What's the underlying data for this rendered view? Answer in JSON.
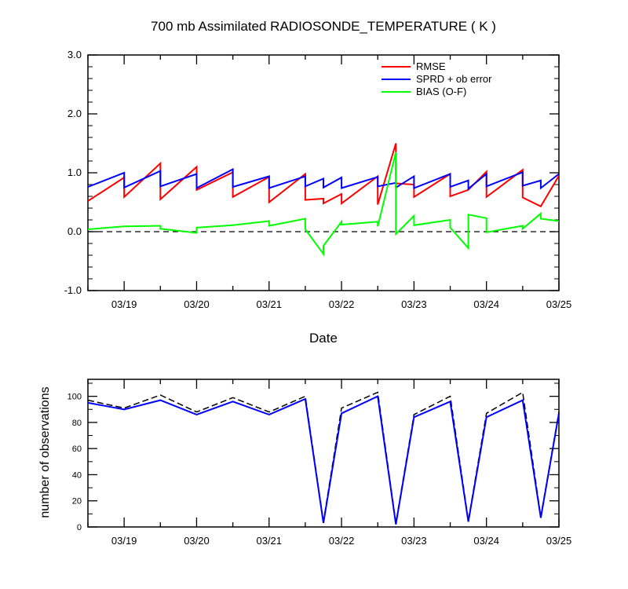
{
  "title": "700 mb Assimilated RADIOSONDE_TEMPERATURE ( K )",
  "chart_data": [
    {
      "type": "line",
      "title": "700 mb Assimilated RADIOSONDE_TEMPERATURE ( K )",
      "xlabel": "Date",
      "ylabel": "",
      "xlim": [
        18.5,
        25.0
      ],
      "ylim": [
        -1.0,
        3.0
      ],
      "x_tick_labels": [
        "03/19",
        "03/20",
        "03/21",
        "03/22",
        "03/23",
        "03/24",
        "03/25"
      ],
      "y_tick_labels": [
        "-1.0",
        "0.0",
        "1.0",
        "2.0",
        "3.0"
      ],
      "legend_placement": "top-right",
      "reference_line": {
        "y": 0.0,
        "style": "dashed"
      },
      "series": [
        {
          "name": "RMSE",
          "color": "#ff0000",
          "points": [
            [
              18.5,
              0.52
            ],
            [
              19.0,
              0.92
            ],
            [
              19.0,
              0.59
            ],
            [
              19.5,
              1.16
            ],
            [
              19.5,
              0.55
            ],
            [
              20.0,
              1.1
            ],
            [
              20.0,
              0.71
            ],
            [
              20.5,
              1.01
            ],
            [
              20.5,
              0.59
            ],
            [
              21.0,
              0.93
            ],
            [
              21.0,
              0.5
            ],
            [
              21.5,
              0.98
            ],
            [
              21.5,
              0.54
            ],
            [
              21.75,
              0.56
            ],
            [
              21.75,
              0.48
            ],
            [
              22.0,
              0.64
            ],
            [
              22.0,
              0.48
            ],
            [
              22.5,
              0.94
            ],
            [
              22.5,
              0.46
            ],
            [
              22.75,
              1.5
            ],
            [
              22.75,
              0.82
            ],
            [
              23.0,
              0.8
            ],
            [
              23.0,
              0.59
            ],
            [
              23.5,
              0.98
            ],
            [
              23.5,
              0.6
            ],
            [
              23.75,
              0.71
            ],
            [
              24.0,
              1.02
            ],
            [
              24.0,
              0.59
            ],
            [
              24.5,
              1.05
            ],
            [
              24.5,
              0.58
            ],
            [
              24.75,
              0.43
            ],
            [
              25.0,
              0.95
            ]
          ]
        },
        {
          "name": "SPRD + ob error",
          "color": "#0000ff",
          "points": [
            [
              18.5,
              0.76
            ],
            [
              19.0,
              1.0
            ],
            [
              19.0,
              0.75
            ],
            [
              19.5,
              1.03
            ],
            [
              19.5,
              0.77
            ],
            [
              20.0,
              0.98
            ],
            [
              20.0,
              0.74
            ],
            [
              20.5,
              1.06
            ],
            [
              20.5,
              0.76
            ],
            [
              21.0,
              0.94
            ],
            [
              21.0,
              0.74
            ],
            [
              21.5,
              0.94
            ],
            [
              21.5,
              0.77
            ],
            [
              21.75,
              0.9
            ],
            [
              21.75,
              0.75
            ],
            [
              22.0,
              0.92
            ],
            [
              22.0,
              0.74
            ],
            [
              22.5,
              0.93
            ],
            [
              22.5,
              0.77
            ],
            [
              22.75,
              0.83
            ],
            [
              22.75,
              0.75
            ],
            [
              23.0,
              0.94
            ],
            [
              23.0,
              0.74
            ],
            [
              23.5,
              0.98
            ],
            [
              23.5,
              0.76
            ],
            [
              23.75,
              0.87
            ],
            [
              23.75,
              0.73
            ],
            [
              24.0,
              0.98
            ],
            [
              24.0,
              0.77
            ],
            [
              24.5,
              1.01
            ],
            [
              24.5,
              0.78
            ],
            [
              24.75,
              0.87
            ],
            [
              24.75,
              0.74
            ],
            [
              25.0,
              0.98
            ]
          ]
        },
        {
          "name": "BIAS (O-F)",
          "color": "#00ff00",
          "points": [
            [
              18.5,
              0.04
            ],
            [
              19.0,
              0.09
            ],
            [
              19.5,
              0.1
            ],
            [
              19.5,
              0.05
            ],
            [
              20.0,
              -0.02
            ],
            [
              20.0,
              0.07
            ],
            [
              20.5,
              0.11
            ],
            [
              21.0,
              0.18
            ],
            [
              21.0,
              0.1
            ],
            [
              21.5,
              0.22
            ],
            [
              21.5,
              0.04
            ],
            [
              21.75,
              -0.38
            ],
            [
              21.75,
              -0.24
            ],
            [
              22.0,
              0.17
            ],
            [
              22.0,
              0.12
            ],
            [
              22.5,
              0.17
            ],
            [
              22.5,
              0.09
            ],
            [
              22.75,
              1.35
            ],
            [
              22.75,
              -0.04
            ],
            [
              23.0,
              0.27
            ],
            [
              23.0,
              0.11
            ],
            [
              23.5,
              0.2
            ],
            [
              23.5,
              0.07
            ],
            [
              23.75,
              -0.28
            ],
            [
              23.75,
              0.29
            ],
            [
              24.0,
              0.23
            ],
            [
              24.0,
              -0.01
            ],
            [
              24.5,
              0.1
            ],
            [
              24.5,
              0.05
            ],
            [
              24.75,
              0.31
            ],
            [
              24.75,
              0.22
            ],
            [
              25.0,
              0.18
            ]
          ]
        }
      ]
    },
    {
      "type": "line",
      "title": "",
      "xlabel": "",
      "ylabel": "number of observations",
      "xlim": [
        18.5,
        25.0
      ],
      "ylim": [
        0,
        113
      ],
      "x_tick_labels": [
        "03/19",
        "03/20",
        "03/21",
        "03/22",
        "03/23",
        "03/24",
        "03/25"
      ],
      "y_tick_labels": [
        "0",
        "20",
        "40",
        "60",
        "80",
        "100"
      ],
      "series": [
        {
          "color": "#000000",
          "style": "dashed",
          "points": [
            [
              18.5,
              97
            ],
            [
              19.0,
              91
            ],
            [
              19.5,
              101
            ],
            [
              20.0,
              88
            ],
            [
              20.5,
              99
            ],
            [
              21.0,
              88
            ],
            [
              21.5,
              100
            ],
            [
              21.75,
              4
            ],
            [
              22.0,
              91
            ],
            [
              22.5,
              103
            ],
            [
              22.75,
              3
            ],
            [
              23.0,
              86
            ],
            [
              23.5,
              100
            ],
            [
              23.75,
              5
            ],
            [
              24.0,
              87
            ],
            [
              24.5,
              103
            ],
            [
              24.75,
              8
            ],
            [
              25.0,
              88
            ]
          ]
        },
        {
          "color": "#0000ff",
          "points": [
            [
              18.5,
              95
            ],
            [
              19.0,
              90
            ],
            [
              19.5,
              97
            ],
            [
              20.0,
              86
            ],
            [
              20.5,
              96
            ],
            [
              21.0,
              86
            ],
            [
              21.5,
              98
            ],
            [
              21.75,
              3
            ],
            [
              22.0,
              87
            ],
            [
              22.5,
              100
            ],
            [
              22.75,
              2
            ],
            [
              23.0,
              84
            ],
            [
              23.5,
              96
            ],
            [
              23.75,
              4
            ],
            [
              24.0,
              84
            ],
            [
              24.5,
              97
            ],
            [
              24.75,
              7
            ],
            [
              25.0,
              87
            ]
          ]
        }
      ]
    }
  ]
}
